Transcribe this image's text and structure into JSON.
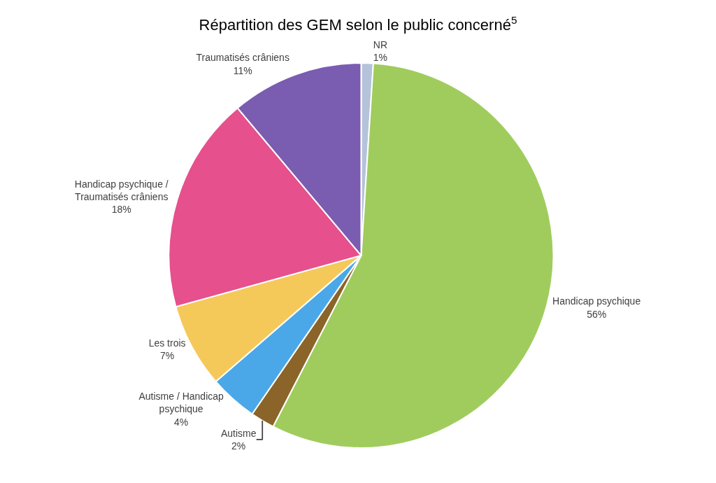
{
  "chart_data": {
    "type": "pie",
    "title": "Répartition des GEM selon le public concerné$^{5}$",
    "categories": [
      "NR",
      "Handicap psychique",
      "Autisme",
      "Autisme / Handicap psychique",
      "Les trois",
      "Handicap psychique / Traumatisés crâniens",
      "Traumatisés crâniens"
    ],
    "values": [
      1,
      56,
      2,
      4,
      7,
      18,
      11
    ],
    "value_labels": [
      "1%",
      "56%",
      "2%",
      "4%",
      "7%",
      "18%",
      "11%"
    ],
    "colors": [
      "#b4c3d9",
      "#a0cc5e",
      "#8a6428",
      "#4aa8e8",
      "#f5c85a",
      "#e6508c",
      "#7a5cb0"
    ],
    "legend": false
  }
}
